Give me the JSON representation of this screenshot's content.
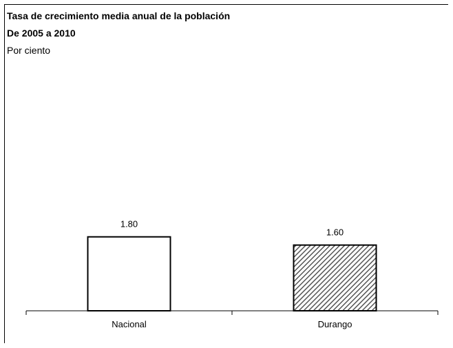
{
  "chart_data": {
    "type": "bar",
    "title": "Tasa de crecimiento media anual de la población",
    "subtitle": "De 2005 a 2010",
    "unit_label": "Por ciento",
    "categories": [
      "Nacional",
      "Durango"
    ],
    "values": [
      1.8,
      1.6
    ],
    "value_labels": [
      "1.80",
      "1.60"
    ],
    "bar_styles": [
      "solid-white",
      "diagonal-hatch"
    ],
    "ylim": [
      0,
      5.1
    ],
    "grid": false,
    "legend": "none"
  },
  "colors": {
    "bar_fill": "#ffffff",
    "bar_stroke": "#000000",
    "hatch": "#555555"
  }
}
